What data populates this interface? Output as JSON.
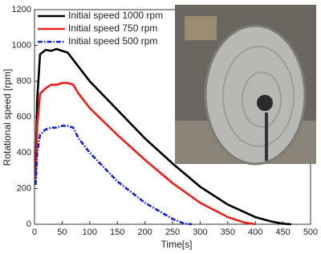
{
  "chart_data": {
    "type": "line",
    "xlabel": "Time[s]",
    "ylabel": "Rotational speed [rpm]",
    "xlim": [
      0,
      500
    ],
    "xticks": [
      0,
      50,
      100,
      150,
      200,
      250,
      300,
      350,
      400,
      450,
      500
    ],
    "ylim": [
      0,
      1200
    ],
    "yticks": [
      0,
      200,
      400,
      600,
      800,
      1000,
      1200
    ],
    "legend": "upper left",
    "series": [
      {
        "name": "Initial speed 1000 rpm",
        "color": "#000000",
        "dash": "solid",
        "x": [
          2,
          5,
          10,
          20,
          30,
          40,
          50,
          60,
          70,
          80,
          100,
          150,
          200,
          250,
          300,
          350,
          400,
          430,
          450,
          465
        ],
        "values": [
          300,
          700,
          950,
          975,
          970,
          980,
          970,
          960,
          920,
          880,
          800,
          640,
          480,
          340,
          210,
          110,
          40,
          15,
          3,
          0
        ]
      },
      {
        "name": "Initial speed 750 rpm",
        "color": "#e8201a",
        "dash": "solid",
        "x": [
          2,
          5,
          10,
          20,
          30,
          40,
          50,
          60,
          70,
          80,
          100,
          150,
          200,
          250,
          300,
          350,
          380,
          400
        ],
        "values": [
          250,
          550,
          730,
          760,
          780,
          780,
          790,
          790,
          780,
          730,
          650,
          500,
          360,
          230,
          120,
          40,
          10,
          0
        ]
      },
      {
        "name": "Initial speed 500 rpm",
        "color": "#1020d0",
        "dash": "dashdot",
        "x": [
          2,
          5,
          10,
          20,
          30,
          40,
          50,
          60,
          70,
          80,
          100,
          150,
          200,
          250,
          270,
          285
        ],
        "values": [
          220,
          400,
          500,
          530,
          540,
          540,
          550,
          550,
          540,
          480,
          400,
          240,
          120,
          30,
          5,
          0
        ]
      }
    ]
  }
}
